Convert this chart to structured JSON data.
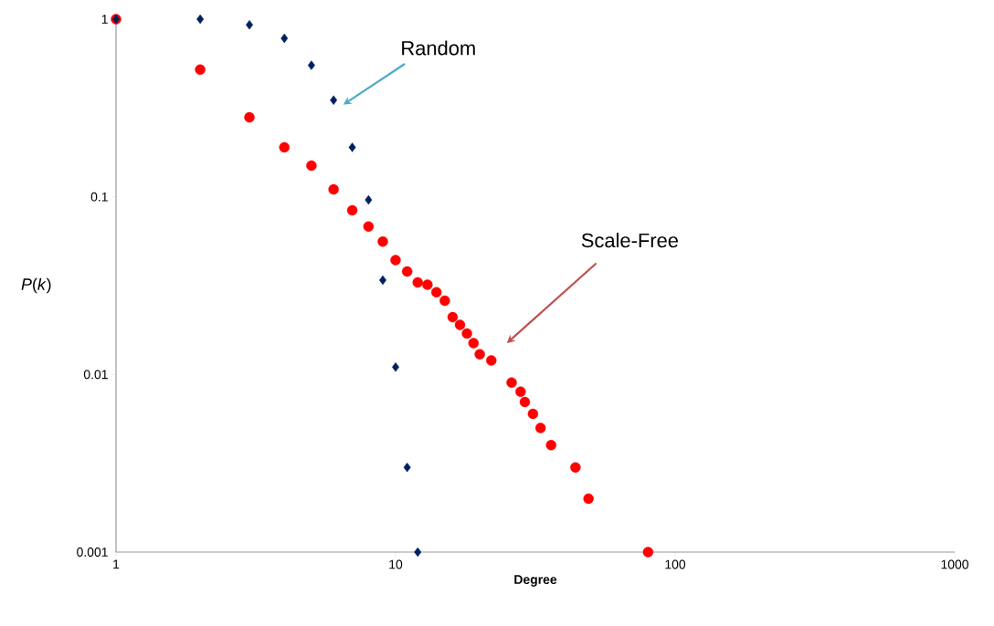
{
  "chart_data": {
    "type": "scatter",
    "xlabel": "Degree",
    "ylabel": "*P*(*k*)",
    "log": "xy",
    "xlim": [
      1,
      1000
    ],
    "ylim": [
      0.001,
      1
    ],
    "xticks": [
      1,
      10,
      100,
      1000
    ],
    "yticks": [
      0.001,
      0.01,
      0.1,
      1
    ],
    "series": [
      {
        "color": "#002060",
        "marker": "diamond",
        "x": [
          1,
          2,
          3,
          4,
          5,
          6,
          7,
          8,
          9,
          10,
          11,
          12
        ],
        "values": [
          1,
          1,
          0.93,
          0.78,
          0.55,
          0.35,
          0.19,
          0.096,
          0.034,
          0.011,
          0.003,
          0.001
        ]
      },
      {
        "color": "#ff0000",
        "marker": "circle",
        "x": [
          1,
          2,
          3,
          4,
          5,
          6,
          7,
          8,
          9,
          10,
          11,
          12,
          13,
          14,
          15,
          16,
          17,
          18,
          19,
          20,
          22,
          26,
          28,
          29,
          31,
          33,
          36,
          44,
          49,
          80
        ],
        "values": [
          1,
          0.52,
          0.28,
          0.19,
          0.15,
          0.11,
          0.084,
          0.068,
          0.056,
          0.044,
          0.038,
          0.033,
          0.032,
          0.029,
          0.026,
          0.021,
          0.019,
          0.017,
          0.015,
          0.013,
          0.012,
          0.009,
          0.008,
          0.007,
          0.006,
          0.005,
          0.004,
          0.003,
          0.002,
          0.001
        ]
      }
    ],
    "annotations": [
      "Random",
      "Scale-Free"
    ]
  }
}
